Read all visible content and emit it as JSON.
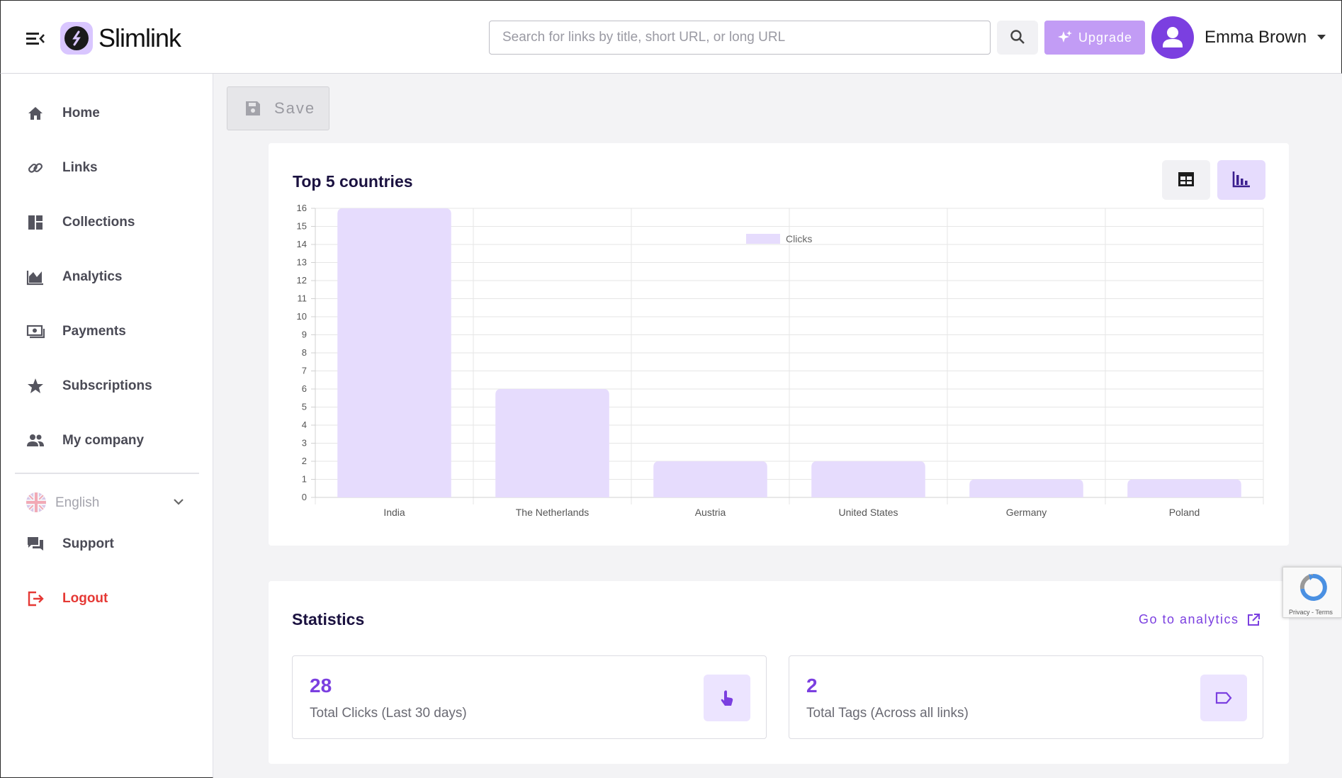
{
  "header": {
    "logo_text": "Slimlink",
    "search_placeholder": "Search for links by title, short URL, or long URL",
    "upgrade_label": "Upgrade",
    "user_name": "Emma Brown"
  },
  "sidebar": {
    "items": [
      {
        "label": "Home",
        "icon": "home-icon"
      },
      {
        "label": "Links",
        "icon": "link-icon"
      },
      {
        "label": "Collections",
        "icon": "dashboard-icon"
      },
      {
        "label": "Analytics",
        "icon": "area-chart-icon"
      },
      {
        "label": "Payments",
        "icon": "money-icon"
      },
      {
        "label": "Subscriptions",
        "icon": "star-icon"
      },
      {
        "label": "My company",
        "icon": "people-icon"
      }
    ],
    "language": "English",
    "support_label": "Support",
    "logout_label": "Logout"
  },
  "toolbar": {
    "save_label": "Save"
  },
  "top_countries": {
    "title": "Top 5 countries"
  },
  "chart_data": {
    "type": "bar",
    "categories": [
      "India",
      "The Netherlands",
      "Austria",
      "United States",
      "Germany",
      "Poland"
    ],
    "series": [
      {
        "name": "Clicks",
        "values": [
          16,
          6,
          2,
          2,
          1,
          1
        ]
      }
    ],
    "ylim": [
      0,
      16
    ],
    "yticks": [
      0,
      1,
      2,
      3,
      4,
      5,
      6,
      7,
      8,
      9,
      10,
      11,
      12,
      13,
      14,
      15,
      16
    ],
    "grid": true,
    "legend": "top-center",
    "bar_color": "#e6dcfd"
  },
  "statistics": {
    "title": "Statistics",
    "goto_label": "Go to analytics",
    "cards": [
      {
        "value": "28",
        "label": "Total Clicks (Last 30 days)",
        "icon": "tap-icon"
      },
      {
        "value": "2",
        "label": "Total Tags (Across all links)",
        "icon": "tag-icon"
      }
    ]
  },
  "recaptcha": {
    "footer": "Privacy - Terms"
  },
  "colors": {
    "accent": "#7b3fe0",
    "logout": "#e53935",
    "upgrade_bg": "#c29cf5"
  }
}
